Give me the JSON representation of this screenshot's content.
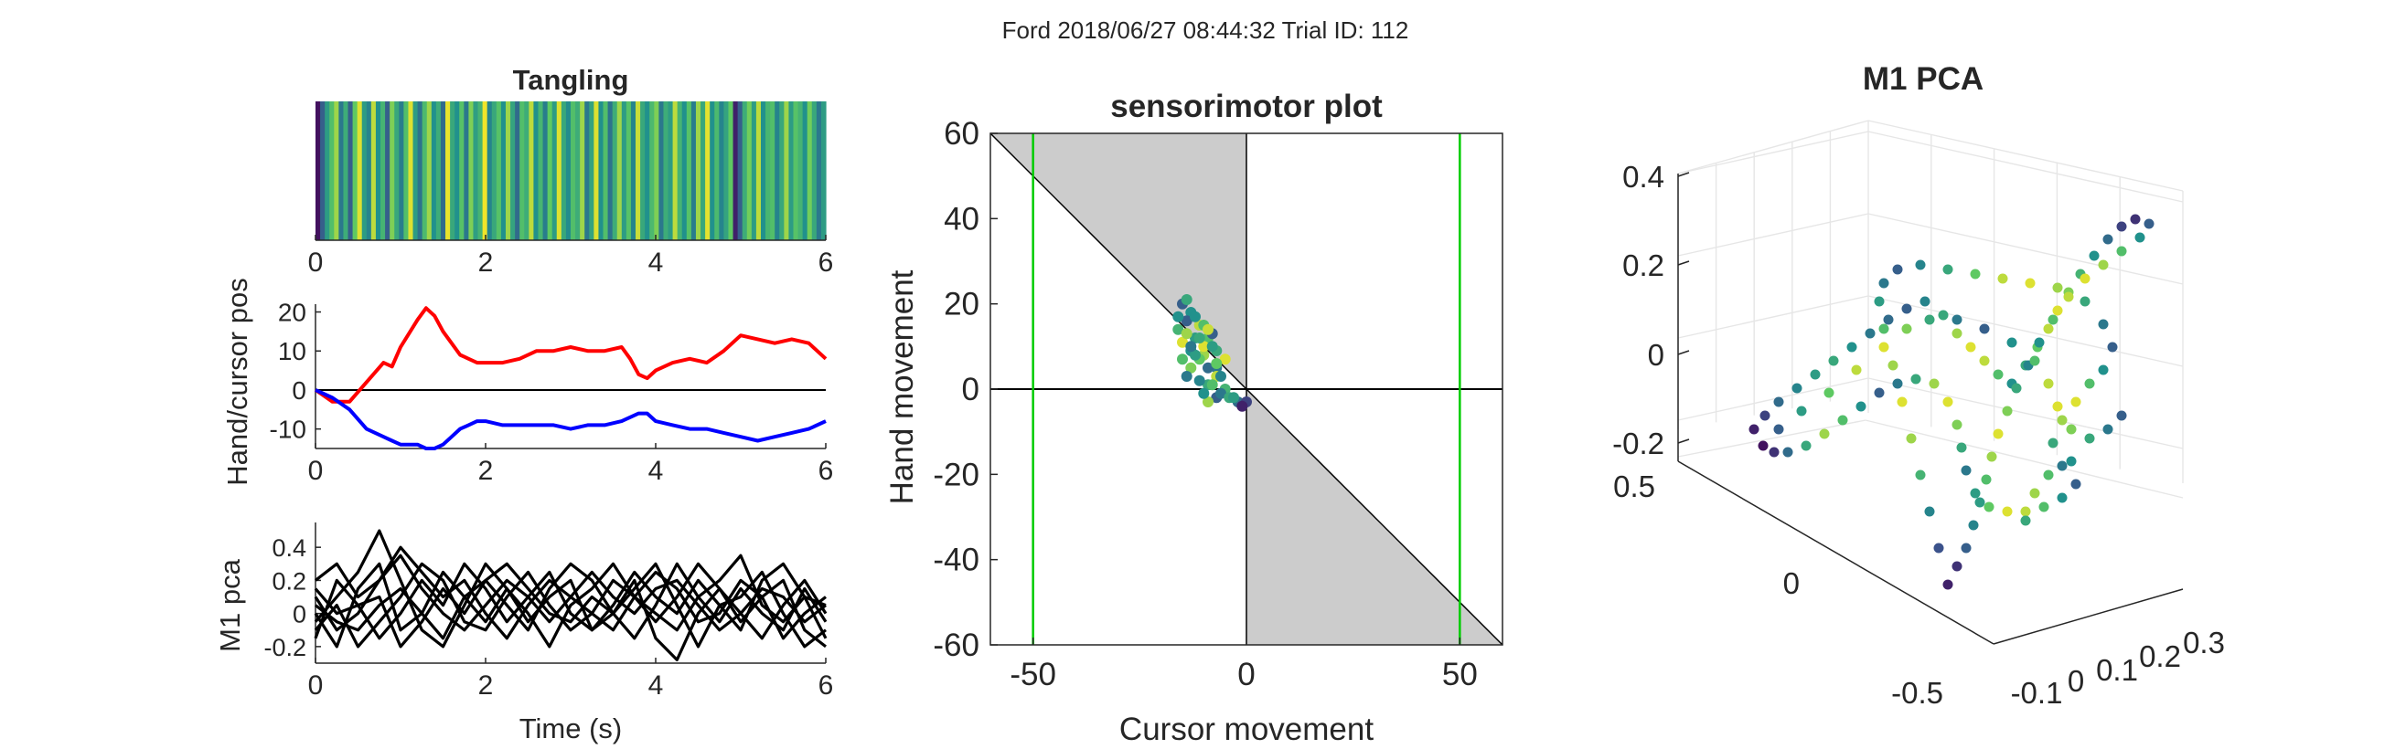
{
  "figure_title": "Ford 2018/06/27 08:44:32 Trial ID: 112",
  "colors": {
    "red_trace": "#ff0000",
    "blue_trace": "#0000ff",
    "black_trace": "#000000",
    "green_line": "#00cc00",
    "shade": "#cccccc",
    "axis": "#262626",
    "grid": "#e6e6e6",
    "viridis": [
      "#440154",
      "#3b528b",
      "#21918c",
      "#5ec962",
      "#fde725"
    ]
  },
  "chart_data": [
    {
      "id": "tangling",
      "type": "heatmap",
      "title": "Tangling",
      "xlim": [
        0,
        6
      ],
      "xticks": [
        "0",
        "2",
        "4",
        "6"
      ],
      "colormap": "viridis",
      "values": [
        0.05,
        0.3,
        0.55,
        0.7,
        0.85,
        0.4,
        0.62,
        0.3,
        0.75,
        0.95,
        0.55,
        0.45,
        0.9,
        0.5,
        0.65,
        0.3,
        0.8,
        0.6,
        0.42,
        0.7,
        0.95,
        0.55,
        0.38,
        0.68,
        0.85,
        0.5,
        0.62,
        0.35,
        0.97,
        0.6,
        0.5,
        0.72,
        0.4,
        0.8,
        0.56,
        0.65,
        0.98,
        0.45,
        0.6,
        0.72,
        0.5,
        0.85,
        0.58,
        0.35,
        0.7,
        0.62,
        0.9,
        0.5,
        0.66,
        0.42,
        0.75,
        0.55,
        0.95,
        0.6,
        0.48,
        0.7,
        0.62,
        0.85,
        0.4,
        0.58,
        0.95,
        0.5,
        0.7,
        0.38,
        0.62,
        0.85,
        0.55,
        0.72,
        0.45,
        0.92,
        0.6,
        0.5,
        0.68,
        0.8,
        0.4,
        0.62,
        0.55,
        0.9,
        0.65,
        0.5,
        0.72,
        0.42,
        0.85,
        0.6,
        0.96,
        0.5,
        0.68,
        0.45,
        0.58,
        0.75,
        0.1,
        0.3,
        0.62,
        0.78,
        0.55,
        0.9,
        0.5,
        0.66,
        0.7,
        0.45,
        0.6,
        0.85,
        0.55,
        0.72,
        0.65,
        0.5,
        0.78,
        0.6,
        0.4,
        0.55
      ]
    },
    {
      "id": "hand-cursor",
      "type": "line",
      "ylabel": "Hand/cursor pos",
      "xlim": [
        0,
        6
      ],
      "ylim": [
        -15,
        22
      ],
      "xticks": [
        "0",
        "2",
        "4",
        "6"
      ],
      "yticks": [
        "-10",
        "0",
        "10",
        "20"
      ],
      "x": [
        0,
        0.2,
        0.4,
        0.6,
        0.8,
        0.9,
        1.0,
        1.2,
        1.3,
        1.4,
        1.5,
        1.6,
        1.7,
        1.8,
        1.9,
        2.0,
        2.2,
        2.4,
        2.6,
        2.8,
        3.0,
        3.2,
        3.4,
        3.6,
        3.7,
        3.8,
        3.9,
        4.0,
        4.2,
        4.4,
        4.6,
        4.8,
        5.0,
        5.2,
        5.4,
        5.6,
        5.8,
        6.0
      ],
      "series": [
        {
          "values": [
            0,
            -3,
            -3,
            2,
            7,
            6,
            11,
            18,
            21,
            19,
            15,
            12,
            9,
            8,
            7,
            7,
            7,
            8,
            10,
            10,
            11,
            10,
            10,
            11,
            8,
            4,
            3,
            5,
            7,
            8,
            7,
            10,
            14,
            13,
            12,
            13,
            12,
            8
          ]
        },
        {
          "values": [
            0,
            -2,
            -5,
            -10,
            -12,
            -13,
            -14,
            -14,
            -15,
            -15,
            -14,
            -12,
            -10,
            -9,
            -8,
            -8,
            -9,
            -9,
            -9,
            -9,
            -10,
            -9,
            -9,
            -8,
            -7,
            -6,
            -6,
            -8,
            -9,
            -10,
            -10,
            -11,
            -12,
            -13,
            -12,
            -11,
            -10,
            -8
          ]
        }
      ]
    },
    {
      "id": "m1-pca-traces",
      "type": "line",
      "ylabel": "M1 pca",
      "xlabel": "Time (s)",
      "xlim": [
        0,
        6
      ],
      "ylim": [
        -0.3,
        0.55
      ],
      "xticks": [
        "0",
        "2",
        "4",
        "6"
      ],
      "yticks": [
        "-0.2",
        "0",
        "0.2",
        "0.4"
      ],
      "x": [
        0,
        0.25,
        0.5,
        0.75,
        1.0,
        1.25,
        1.5,
        1.75,
        2.0,
        2.25,
        2.5,
        2.75,
        3.0,
        3.25,
        3.5,
        3.75,
        4.0,
        4.25,
        4.5,
        4.75,
        5.0,
        5.25,
        5.5,
        5.75,
        6.0
      ],
      "series": [
        {
          "values": [
            0.2,
            0.3,
            0.1,
            0.2,
            0.35,
            0.15,
            0.0,
            -0.1,
            0.05,
            0.2,
            0.1,
            -0.05,
            0.1,
            0.25,
            0.1,
            0.0,
            0.15,
            0.2,
            0.05,
            -0.1,
            0.0,
            0.15,
            0.1,
            -0.05,
            0.05
          ]
        },
        {
          "values": [
            -0.05,
            0.1,
            0.25,
            0.5,
            0.2,
            -0.1,
            -0.2,
            0.05,
            0.3,
            0.15,
            -0.05,
            0.1,
            0.2,
            -0.1,
            0.0,
            0.2,
            -0.15,
            -0.28,
            0.0,
            0.15,
            -0.05,
            0.1,
            0.2,
            -0.1,
            -0.2
          ]
        },
        {
          "values": [
            0.1,
            -0.1,
            0.0,
            0.2,
            0.4,
            0.25,
            0.1,
            0.2,
            0.0,
            -0.15,
            0.05,
            0.2,
            0.1,
            0.0,
            -0.1,
            0.1,
            0.25,
            0.15,
            -0.05,
            0.0,
            0.2,
            0.1,
            -0.15,
            0.0,
            0.1
          ]
        },
        {
          "values": [
            -0.1,
            0.05,
            -0.2,
            -0.05,
            0.1,
            0.3,
            0.2,
            -0.05,
            -0.1,
            0.1,
            0.25,
            0.05,
            -0.1,
            0.0,
            0.2,
            0.1,
            -0.05,
            0.1,
            0.3,
            0.15,
            0.0,
            -0.15,
            0.05,
            0.2,
            0.0
          ]
        },
        {
          "values": [
            0.0,
            -0.2,
            0.15,
            0.3,
            -0.1,
            0.0,
            0.25,
            0.1,
            -0.05,
            0.15,
            0.0,
            -0.2,
            0.05,
            0.15,
            0.3,
            0.1,
            0.0,
            -0.1,
            0.1,
            0.2,
            0.35,
            0.05,
            -0.05,
            0.1,
            -0.15
          ]
        },
        {
          "values": [
            0.15,
            0.0,
            0.05,
            -0.15,
            0.0,
            0.2,
            0.05,
            0.3,
            0.15,
            -0.05,
            0.1,
            0.25,
            0.0,
            -0.1,
            0.05,
            0.25,
            0.1,
            0.0,
            0.2,
            0.05,
            -0.1,
            0.2,
            0.3,
            0.1,
            0.05
          ]
        },
        {
          "values": [
            -0.15,
            0.2,
            0.05,
            0.1,
            -0.2,
            -0.05,
            0.15,
            0.0,
            0.2,
            0.05,
            -0.1,
            0.15,
            0.3,
            0.2,
            0.0,
            -0.15,
            0.05,
            0.3,
            0.1,
            -0.05,
            0.15,
            0.0,
            -0.1,
            0.15,
            -0.05
          ]
        },
        {
          "values": [
            0.05,
            -0.05,
            -0.1,
            0.05,
            0.15,
            0.0,
            -0.15,
            0.1,
            0.2,
            0.3,
            0.15,
            0.0,
            -0.05,
            0.1,
            0.0,
            0.15,
            0.3,
            0.05,
            -0.2,
            0.05,
            0.1,
            0.25,
            0.0,
            -0.2,
            -0.1
          ]
        }
      ]
    },
    {
      "id": "sensorimotor",
      "type": "scatter",
      "title": "sensorimotor plot",
      "xlabel": "Cursor movement",
      "ylabel": "Hand movement",
      "xlim": [
        -60,
        60
      ],
      "ylim": [
        -60,
        60
      ],
      "xticks": [
        "-50",
        "0",
        "50"
      ],
      "yticks": [
        "-60",
        "-40",
        "-20",
        "0",
        "20",
        "40",
        "60"
      ],
      "vlines": [
        -50,
        50
      ],
      "shaded_regions": "x<0,y>0 above y=-x; x>0,y<0 below y=-x",
      "points": [
        {
          "x": -15,
          "y": 20,
          "c": 0.3
        },
        {
          "x": -13,
          "y": 18,
          "c": 0.5
        },
        {
          "x": -11,
          "y": 15,
          "c": 0.9
        },
        {
          "x": -9,
          "y": 12,
          "c": 0.7
        },
        {
          "x": -7,
          "y": 9,
          "c": 0.6
        },
        {
          "x": -5,
          "y": 7,
          "c": 0.95
        },
        {
          "x": -7,
          "y": 5,
          "c": 0.4
        },
        {
          "x": -10,
          "y": 8,
          "c": 0.85
        },
        {
          "x": -12,
          "y": 12,
          "c": 0.55
        },
        {
          "x": -14,
          "y": 16,
          "c": 0.3
        },
        {
          "x": -16,
          "y": 14,
          "c": 0.65
        },
        {
          "x": -15,
          "y": 11,
          "c": 0.95
        },
        {
          "x": -13,
          "y": 9,
          "c": 0.5
        },
        {
          "x": -11,
          "y": 7,
          "c": 0.75
        },
        {
          "x": -9,
          "y": 5,
          "c": 0.35
        },
        {
          "x": -7,
          "y": 3,
          "c": 0.9
        },
        {
          "x": -9,
          "y": 1,
          "c": 0.6
        },
        {
          "x": -11,
          "y": 2,
          "c": 0.45
        },
        {
          "x": -13,
          "y": 5,
          "c": 0.8
        },
        {
          "x": -12,
          "y": 8,
          "c": 0.55
        },
        {
          "x": -10,
          "y": 10,
          "c": 0.95
        },
        {
          "x": -8,
          "y": 13,
          "c": 0.3
        },
        {
          "x": -10,
          "y": 15,
          "c": 0.7
        },
        {
          "x": -12,
          "y": 17,
          "c": 0.5
        },
        {
          "x": -14,
          "y": 13,
          "c": 0.85
        },
        {
          "x": -13,
          "y": 10,
          "c": 0.4
        },
        {
          "x": -11,
          "y": 12,
          "c": 0.6
        },
        {
          "x": -9,
          "y": 14,
          "c": 0.92
        },
        {
          "x": -8,
          "y": 10,
          "c": 0.55
        },
        {
          "x": -7,
          "y": 6,
          "c": 0.75
        },
        {
          "x": -6,
          "y": 3,
          "c": 0.45
        },
        {
          "x": -5,
          "y": 0,
          "c": 0.65
        },
        {
          "x": -7,
          "y": -2,
          "c": 0.3
        },
        {
          "x": -9,
          "y": -3,
          "c": 0.85
        },
        {
          "x": -10,
          "y": -1,
          "c": 0.5
        },
        {
          "x": -8,
          "y": 1,
          "c": 0.7
        },
        {
          "x": -6,
          "y": -1,
          "c": 0.4
        },
        {
          "x": -4,
          "y": -2,
          "c": 0.6
        },
        {
          "x": -2,
          "y": -3,
          "c": 0.35
        },
        {
          "x": 0,
          "y": -3,
          "c": 0.2
        },
        {
          "x": -1,
          "y": -4,
          "c": 0.1
        },
        {
          "x": -3,
          "y": -2,
          "c": 0.55
        },
        {
          "x": -14,
          "y": 21,
          "c": 0.6
        },
        {
          "x": -16,
          "y": 17,
          "c": 0.5
        },
        {
          "x": -15,
          "y": 7,
          "c": 0.7
        },
        {
          "x": -14,
          "y": 3,
          "c": 0.4
        }
      ]
    },
    {
      "id": "m1-pca-3d",
      "type": "scatter",
      "title": "M1 PCA",
      "z_ticks": [
        "0.4",
        "0.2",
        "0",
        "-0.2"
      ],
      "y_ticks": [
        "0.5",
        "0",
        "-0.5"
      ],
      "x_ticks": [
        "-0.1",
        "0",
        "0.1",
        "0.2",
        "0.3"
      ],
      "colormap": "viridis"
    }
  ]
}
